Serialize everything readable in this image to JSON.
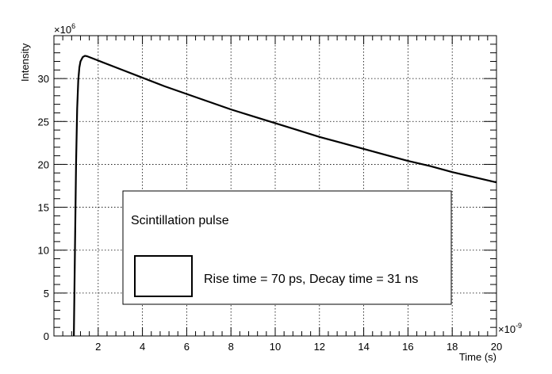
{
  "chart_data": {
    "type": "line",
    "xlabel": "Time (s)",
    "ylabel": "Intensity",
    "x_multiplier_base": "×10",
    "x_multiplier_exp": "-9",
    "y_multiplier_base": "×10",
    "y_multiplier_exp": "6",
    "xlim": [
      0,
      20
    ],
    "ylim": [
      0,
      35
    ],
    "x_ticks": [
      2,
      4,
      6,
      8,
      10,
      12,
      14,
      16,
      18,
      20
    ],
    "x_tick_labels": [
      "2",
      "4",
      "6",
      "8",
      "10",
      "12",
      "14",
      "16",
      "18",
      "20"
    ],
    "y_ticks": [
      0,
      5,
      10,
      15,
      20,
      25,
      30
    ],
    "y_tick_labels": [
      "0",
      "5",
      "10",
      "15",
      "20",
      "25",
      "30"
    ],
    "grid": true,
    "legend": {
      "title": "Scintillation pulse",
      "entries": [
        "Rise time = 70 ps, Decay time = 31 ns"
      ],
      "placement": "center-bottom"
    },
    "series": [
      {
        "x": [
          0.9,
          0.95,
          1.0,
          1.05,
          1.1,
          1.15,
          1.2,
          1.3,
          1.4,
          1.5,
          2,
          3,
          4,
          5,
          6,
          7,
          8,
          9,
          10,
          11,
          12,
          13,
          14,
          15,
          16,
          17,
          18,
          19,
          20
        ],
        "y": [
          0,
          10,
          20,
          26.5,
          29.8,
          31.3,
          32.0,
          32.5,
          32.65,
          32.6,
          32.1,
          31.1,
          30.1,
          29.1,
          28.2,
          27.3,
          26.4,
          25.6,
          24.8,
          24.0,
          23.2,
          22.5,
          21.8,
          21.1,
          20.4,
          19.8,
          19.1,
          18.5,
          17.9
        ]
      }
    ]
  }
}
